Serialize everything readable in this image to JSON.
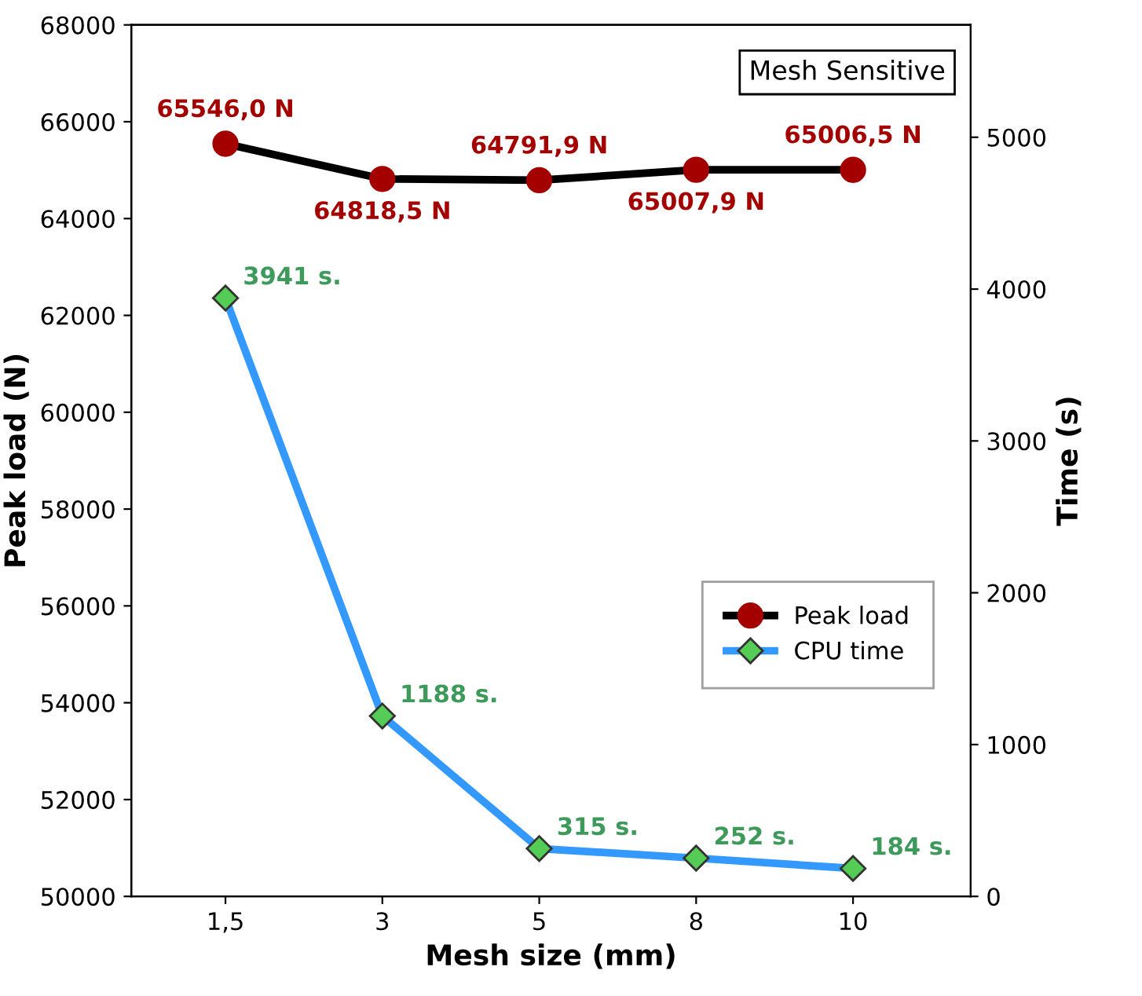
{
  "chart_data": {
    "type": "line",
    "xlabel": "Mesh size (mm)",
    "ylabel": "Peak load (N)",
    "y2label": "Time (s)",
    "categories": [
      "1,5",
      "3",
      "5",
      "8",
      "10"
    ],
    "series": [
      {
        "name": "Peak load",
        "color": "#000000",
        "colors": [
          "#a50000",
          "#a50000",
          "#a50000",
          "#a50000",
          "#a50000"
        ],
        "marker": "circle",
        "values": [
          65546.0,
          64818.5,
          64791.9,
          65007.9,
          65006.5
        ],
        "value_labels": [
          "65546,0 N",
          "64818,5 N",
          "64791,9 N",
          "65007,9 N",
          "65006,5 N"
        ]
      },
      {
        "name": "CPU time",
        "color": "#3399ff",
        "colors": [
          "#55cc55",
          "#55cc55",
          "#55cc55",
          "#55cc55",
          "#55cc55"
        ],
        "marker": "diamond",
        "axis": "y2",
        "values": [
          3941,
          1188,
          315,
          252,
          184
        ],
        "value_labels": [
          "3941 s.",
          "1188 s.",
          "315 s.",
          "252 s.",
          "184 s."
        ]
      }
    ],
    "ylim": [
      50000,
      68000
    ],
    "yticks": [
      50000,
      52000,
      54000,
      56000,
      58000,
      60000,
      62000,
      64000,
      66000,
      68000
    ],
    "y2lim": [
      0,
      5740
    ],
    "y2ticks": [
      0,
      1000,
      2000,
      3000,
      4000,
      5000
    ],
    "annotations": [
      "Mesh Sensitive"
    ],
    "legend": "right",
    "grid": false
  }
}
